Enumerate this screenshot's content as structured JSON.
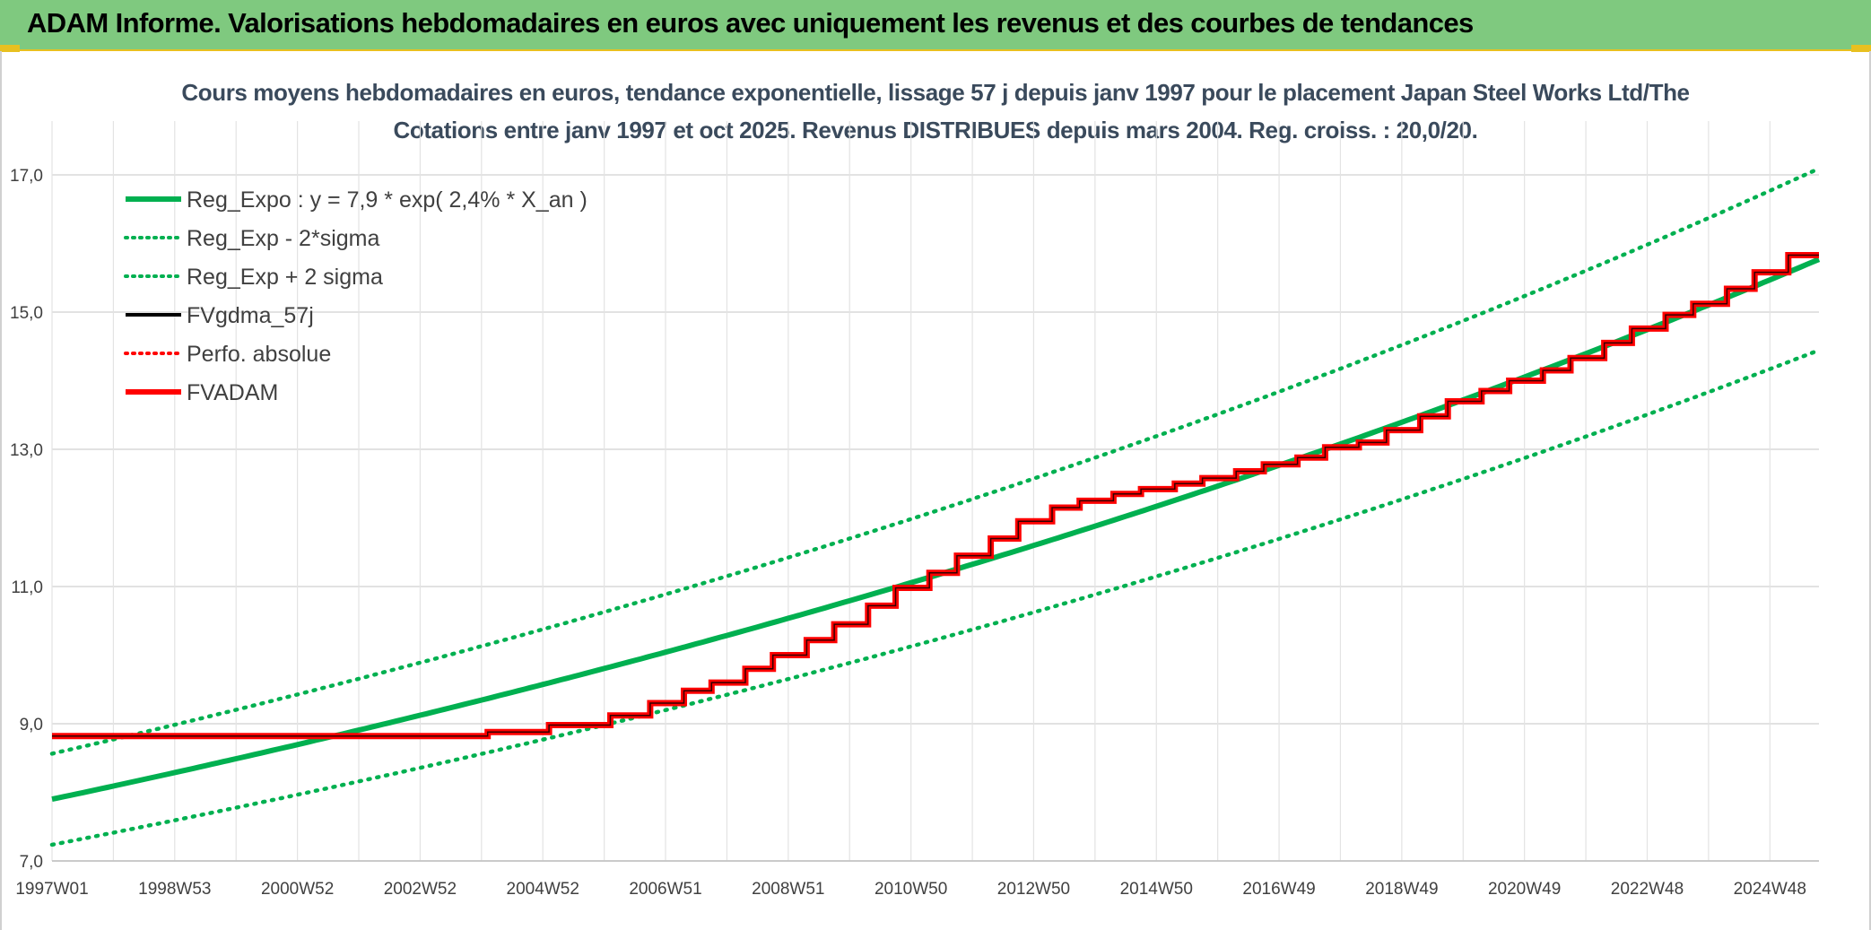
{
  "header": {
    "title": "ADAM Informe. Valorisations hebdomadaires en euros avec uniquement les revenus et des courbes de tendances"
  },
  "chart_data": {
    "type": "line",
    "title_line1": "Cours moyens hebdomadaires en euros, tendance exponentielle, lissage 57 j depuis janv 1997 pour le placement Japan Steel Works Ltd/The",
    "title_line2": "Cotations entre janv 1997 et oct 2025. Revenus DISTRIBUES depuis mars 2004. Reg. croiss. : 20,0/20.",
    "xlabel": "",
    "ylabel": "",
    "ylim": [
      7.0,
      17.0
    ],
    "xlim": [
      1997.0,
      2025.8
    ],
    "y_ticks": [
      "7,0",
      "9,0",
      "11,0",
      "13,0",
      "15,0",
      "17,0"
    ],
    "y_tick_values": [
      7,
      9,
      11,
      13,
      15,
      17
    ],
    "x_ticks": [
      "1997W01",
      "1998W53",
      "2000W52",
      "2002W52",
      "2004W52",
      "2006W51",
      "2008W51",
      "2010W50",
      "2012W50",
      "2014W50",
      "2016W49",
      "2018W49",
      "2020W49",
      "2022W48",
      "2024W48"
    ],
    "x_tick_values": [
      1997.0,
      1999.0,
      2001.0,
      2003.0,
      2005.0,
      2007.0,
      2009.0,
      2011.0,
      2013.0,
      2015.0,
      2017.0,
      2019.0,
      2021.0,
      2023.0,
      2025.0
    ],
    "legend": {
      "position": "top-left",
      "entries": [
        {
          "label": "Reg_Expo : y = 7,9 * exp( 2,4% *  X_an )",
          "color": "#00b050",
          "style": "solid-thick"
        },
        {
          "label": "Reg_Exp - 2*sigma",
          "color": "#00b050",
          "style": "dotted"
        },
        {
          "label": "Reg_Exp + 2 sigma",
          "color": "#00b050",
          "style": "dotted"
        },
        {
          "label": "FVgdma_57j",
          "color": "#000000",
          "style": "solid"
        },
        {
          "label": "Perfo. absolue",
          "color": "#ff0000",
          "style": "dotted"
        },
        {
          "label": "FVADAM",
          "color": "#ff0000",
          "style": "solid-thick"
        }
      ]
    },
    "regression": {
      "a": 7.9,
      "rate": 0.024,
      "sigma_factor": 0.084
    },
    "series": [
      {
        "name": "FVADAM",
        "color": "#ff0000",
        "x": [
          1997.0,
          2004.1,
          2004.1,
          2005.1,
          2005.1,
          2006.1,
          2006.1,
          2006.75,
          2006.75,
          2007.3,
          2007.3,
          2007.75,
          2007.75,
          2008.3,
          2008.3,
          2008.75,
          2008.75,
          2009.3,
          2009.3,
          2009.75,
          2009.75,
          2010.3,
          2010.3,
          2010.75,
          2010.75,
          2011.3,
          2011.3,
          2011.75,
          2011.75,
          2012.3,
          2012.3,
          2012.75,
          2012.75,
          2013.3,
          2013.3,
          2013.75,
          2013.75,
          2014.3,
          2014.3,
          2014.75,
          2014.75,
          2015.3,
          2015.3,
          2015.75,
          2015.75,
          2016.3,
          2016.3,
          2016.75,
          2016.75,
          2017.3,
          2017.3,
          2017.75,
          2017.75,
          2018.3,
          2018.3,
          2018.75,
          2018.75,
          2019.3,
          2019.3,
          2019.75,
          2019.75,
          2020.3,
          2020.3,
          2020.75,
          2020.75,
          2021.3,
          2021.3,
          2021.75,
          2021.75,
          2022.3,
          2022.3,
          2022.75,
          2022.75,
          2023.3,
          2023.3,
          2023.75,
          2023.75,
          2024.3,
          2024.3,
          2024.75,
          2024.75,
          2025.3,
          2025.3,
          2025.8
        ],
        "values": [
          8.82,
          8.82,
          8.88,
          8.88,
          8.98,
          8.98,
          9.12,
          9.12,
          9.3,
          9.3,
          9.48,
          9.48,
          9.6,
          9.6,
          9.8,
          9.8,
          10.0,
          10.0,
          10.22,
          10.22,
          10.45,
          10.45,
          10.72,
          10.72,
          10.98,
          10.98,
          11.2,
          11.2,
          11.45,
          11.45,
          11.7,
          11.7,
          11.95,
          11.95,
          12.15,
          12.15,
          12.25,
          12.25,
          12.35,
          12.35,
          12.42,
          12.42,
          12.5,
          12.5,
          12.58,
          12.58,
          12.68,
          12.68,
          12.78,
          12.78,
          12.88,
          12.88,
          13.03,
          13.03,
          13.1,
          13.1,
          13.28,
          13.28,
          13.48,
          13.48,
          13.7,
          13.7,
          13.85,
          13.85,
          14.0,
          14.0,
          14.15,
          14.15,
          14.33,
          14.33,
          14.55,
          14.55,
          14.76,
          14.76,
          14.96,
          14.96,
          15.12,
          15.12,
          15.34,
          15.34,
          15.58,
          15.58,
          15.83,
          15.83
        ]
      }
    ]
  }
}
